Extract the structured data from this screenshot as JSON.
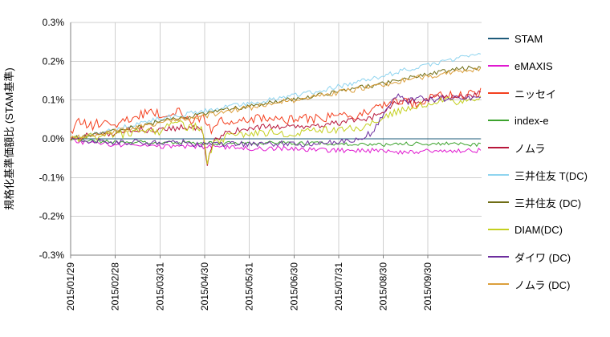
{
  "chart_data": {
    "type": "line",
    "title": "",
    "ylabel": "規格化基準価額比 (STAM基準)",
    "xlabel": "",
    "ylim": [
      -0.3,
      0.3
    ],
    "xlim": [
      0,
      9.2
    ],
    "grid": true,
    "legend_position": "right",
    "y_unit": "%",
    "yticks": [
      0.3,
      0.2,
      0.1,
      0.0,
      -0.1,
      -0.2,
      -0.3
    ],
    "ytick_labels": [
      "0.3%",
      "0.2%",
      "0.1%",
      "0.0%",
      "-0.1%",
      "-0.2%",
      "-0.3%"
    ],
    "xticks": [
      0,
      1,
      2,
      3,
      4,
      5,
      6,
      7,
      8
    ],
    "xtick_labels": [
      "2015/01/29",
      "2015/02/28",
      "2015/03/31",
      "2015/04/30",
      "2015/05/31",
      "2015/06/30",
      "2015/07/31",
      "2015/08/30",
      "2015/09/30"
    ],
    "x_unit": "months since 2015/01/29",
    "series": [
      {
        "name": "STAM",
        "color": "#1e5b7a",
        "jitter": 0,
        "points": [
          [
            0,
            0
          ],
          [
            9.2,
            0
          ]
        ]
      },
      {
        "name": "eMAXIS",
        "color": "#e019d0",
        "jitter": 0.006,
        "points": [
          [
            0,
            0
          ],
          [
            0.3,
            -0.01
          ],
          [
            1,
            -0.015
          ],
          [
            2,
            -0.02
          ],
          [
            3,
            -0.02
          ],
          [
            4,
            -0.025
          ],
          [
            5,
            -0.025
          ],
          [
            6,
            -0.03
          ],
          [
            7,
            -0.03
          ],
          [
            7.5,
            -0.035
          ],
          [
            8,
            -0.03
          ],
          [
            8.6,
            -0.032
          ],
          [
            9.2,
            -0.03
          ]
        ]
      },
      {
        "name": "ニッセイ",
        "color": "#f4401f",
        "jitter": 0.012,
        "points": [
          [
            0,
            0.01
          ],
          [
            0.15,
            0.055
          ],
          [
            0.4,
            0.03
          ],
          [
            0.7,
            0.045
          ],
          [
            1,
            0.04
          ],
          [
            1.4,
            0.055
          ],
          [
            1.8,
            0.07
          ],
          [
            2.1,
            0.06
          ],
          [
            2.4,
            0.07
          ],
          [
            2.7,
            0.05
          ],
          [
            3,
            0.055
          ],
          [
            3.15,
            0.025
          ],
          [
            3.4,
            0.05
          ],
          [
            3.7,
            0.04
          ],
          [
            4,
            0.05
          ],
          [
            4.4,
            0.055
          ],
          [
            4.8,
            0.045
          ],
          [
            5.2,
            0.055
          ],
          [
            5.6,
            0.05
          ],
          [
            6,
            0.065
          ],
          [
            6.4,
            0.06
          ],
          [
            6.8,
            0.08
          ],
          [
            7.1,
            0.09
          ],
          [
            7.4,
            0.1
          ],
          [
            7.7,
            0.09
          ],
          [
            8,
            0.105
          ],
          [
            8.4,
            0.115
          ],
          [
            8.8,
            0.11
          ],
          [
            9.2,
            0.12
          ]
        ]
      },
      {
        "name": "index-e",
        "color": "#3da32e",
        "jitter": 0.005,
        "points": [
          [
            0,
            0
          ],
          [
            0.5,
            -0.005
          ],
          [
            1,
            -0.008
          ],
          [
            2,
            -0.01
          ],
          [
            3,
            -0.012
          ],
          [
            4,
            -0.01
          ],
          [
            5,
            -0.012
          ],
          [
            6,
            -0.012
          ],
          [
            7,
            -0.015
          ],
          [
            8,
            -0.012
          ],
          [
            9.2,
            -0.015
          ]
        ]
      },
      {
        "name": "ノムラ",
        "color": "#b8173b",
        "jitter": 0.008,
        "points": [
          [
            0,
            0
          ],
          [
            0.5,
            0.01
          ],
          [
            1,
            0.015
          ],
          [
            1.5,
            0.025
          ],
          [
            2,
            0.02
          ],
          [
            2.5,
            0.03
          ],
          [
            2.95,
            0.025
          ],
          [
            3.05,
            -0.07
          ],
          [
            3.2,
            -0.005
          ],
          [
            3.5,
            0.015
          ],
          [
            4,
            0.03
          ],
          [
            4.5,
            0.03
          ],
          [
            5,
            0.03
          ],
          [
            5.5,
            0.035
          ],
          [
            6,
            0.04
          ],
          [
            6.5,
            0.05
          ],
          [
            6.9,
            0.06
          ],
          [
            7.2,
            0.09
          ],
          [
            7.5,
            0.1
          ],
          [
            7.8,
            0.095
          ],
          [
            8.1,
            0.105
          ],
          [
            8.5,
            0.11
          ],
          [
            8.8,
            0.105
          ],
          [
            9.2,
            0.12
          ]
        ]
      },
      {
        "name": "三井住友 T(DC)",
        "color": "#8fd4ef",
        "jitter": 0.006,
        "points": [
          [
            0,
            0
          ],
          [
            0.5,
            0.012
          ],
          [
            1,
            0.025
          ],
          [
            1.5,
            0.04
          ],
          [
            2,
            0.052
          ],
          [
            2.5,
            0.062
          ],
          [
            3,
            0.072
          ],
          [
            3.5,
            0.082
          ],
          [
            4,
            0.092
          ],
          [
            4.5,
            0.102
          ],
          [
            5,
            0.112
          ],
          [
            5.5,
            0.122
          ],
          [
            6,
            0.135
          ],
          [
            6.5,
            0.148
          ],
          [
            7,
            0.162
          ],
          [
            7.5,
            0.178
          ],
          [
            8,
            0.19
          ],
          [
            8.6,
            0.205
          ],
          [
            9.2,
            0.22
          ]
        ]
      },
      {
        "name": "三井住友 (DC)",
        "color": "#6f6d15",
        "jitter": 0.006,
        "points": [
          [
            0,
            0
          ],
          [
            0.5,
            0.01
          ],
          [
            1,
            0.02
          ],
          [
            1.5,
            0.032
          ],
          [
            2,
            0.045
          ],
          [
            2.5,
            0.055
          ],
          [
            3,
            0.065
          ],
          [
            3.5,
            0.075
          ],
          [
            4,
            0.085
          ],
          [
            4.5,
            0.095
          ],
          [
            5,
            0.103
          ],
          [
            5.5,
            0.112
          ],
          [
            6,
            0.122
          ],
          [
            6.5,
            0.132
          ],
          [
            7,
            0.142
          ],
          [
            7.5,
            0.155
          ],
          [
            8,
            0.168
          ],
          [
            8.6,
            0.178
          ],
          [
            9.2,
            0.185
          ]
        ]
      },
      {
        "name": "DIAM(DC)",
        "color": "#c4d01f",
        "jitter": 0.01,
        "points": [
          [
            0,
            0
          ],
          [
            0.5,
            0.005
          ],
          [
            1,
            0.01
          ],
          [
            1.5,
            0.015
          ],
          [
            2,
            0.02
          ],
          [
            2.3,
            0.05
          ],
          [
            2.6,
            0.03
          ],
          [
            2.95,
            0.03
          ],
          [
            3.05,
            -0.06
          ],
          [
            3.2,
            -0.01
          ],
          [
            3.5,
            0.005
          ],
          [
            4,
            0.01
          ],
          [
            4.5,
            0.015
          ],
          [
            5,
            0.015
          ],
          [
            5.5,
            0.02
          ],
          [
            6,
            0.025
          ],
          [
            6.5,
            0.03
          ],
          [
            7,
            0.05
          ],
          [
            7.3,
            0.07
          ],
          [
            7.6,
            0.08
          ],
          [
            8,
            0.09
          ],
          [
            8.4,
            0.1
          ],
          [
            8.8,
            0.095
          ],
          [
            9.2,
            0.105
          ]
        ]
      },
      {
        "name": "ダイワ (DC)",
        "color": "#6d2e9e",
        "jitter": 0.008,
        "points": [
          [
            0,
            0
          ],
          [
            0.5,
            -0.005
          ],
          [
            1,
            -0.01
          ],
          [
            1.5,
            -0.008
          ],
          [
            2,
            -0.012
          ],
          [
            2.5,
            -0.01
          ],
          [
            3,
            -0.015
          ],
          [
            3.5,
            -0.012
          ],
          [
            4,
            -0.015
          ],
          [
            4.5,
            -0.012
          ],
          [
            5,
            -0.015
          ],
          [
            5.5,
            -0.012
          ],
          [
            6,
            -0.01
          ],
          [
            6.5,
            0
          ],
          [
            6.8,
            0.02
          ],
          [
            7.05,
            0.08
          ],
          [
            7.3,
            0.115
          ],
          [
            7.5,
            0.095
          ],
          [
            7.8,
            0.105
          ],
          [
            8.1,
            0.1
          ],
          [
            8.5,
            0.105
          ],
          [
            8.8,
            0.1
          ],
          [
            9.2,
            0.11
          ]
        ]
      },
      {
        "name": "ノムラ (DC)",
        "color": "#dc9f3c",
        "jitter": 0.007,
        "points": [
          [
            0,
            0
          ],
          [
            0.5,
            0.008
          ],
          [
            1,
            0.018
          ],
          [
            1.5,
            0.03
          ],
          [
            2,
            0.042
          ],
          [
            2.5,
            0.052
          ],
          [
            3,
            0.06
          ],
          [
            3.5,
            0.07
          ],
          [
            4,
            0.08
          ],
          [
            4.5,
            0.09
          ],
          [
            5,
            0.1
          ],
          [
            5.5,
            0.11
          ],
          [
            6,
            0.12
          ],
          [
            6.5,
            0.13
          ],
          [
            7,
            0.14
          ],
          [
            7.5,
            0.152
          ],
          [
            8,
            0.162
          ],
          [
            8.6,
            0.172
          ],
          [
            9.2,
            0.18
          ]
        ]
      }
    ]
  },
  "colors": {
    "grid": "#cfcfcf",
    "axis": "#7f7f7f",
    "text": "#000000",
    "background": "#ffffff"
  }
}
